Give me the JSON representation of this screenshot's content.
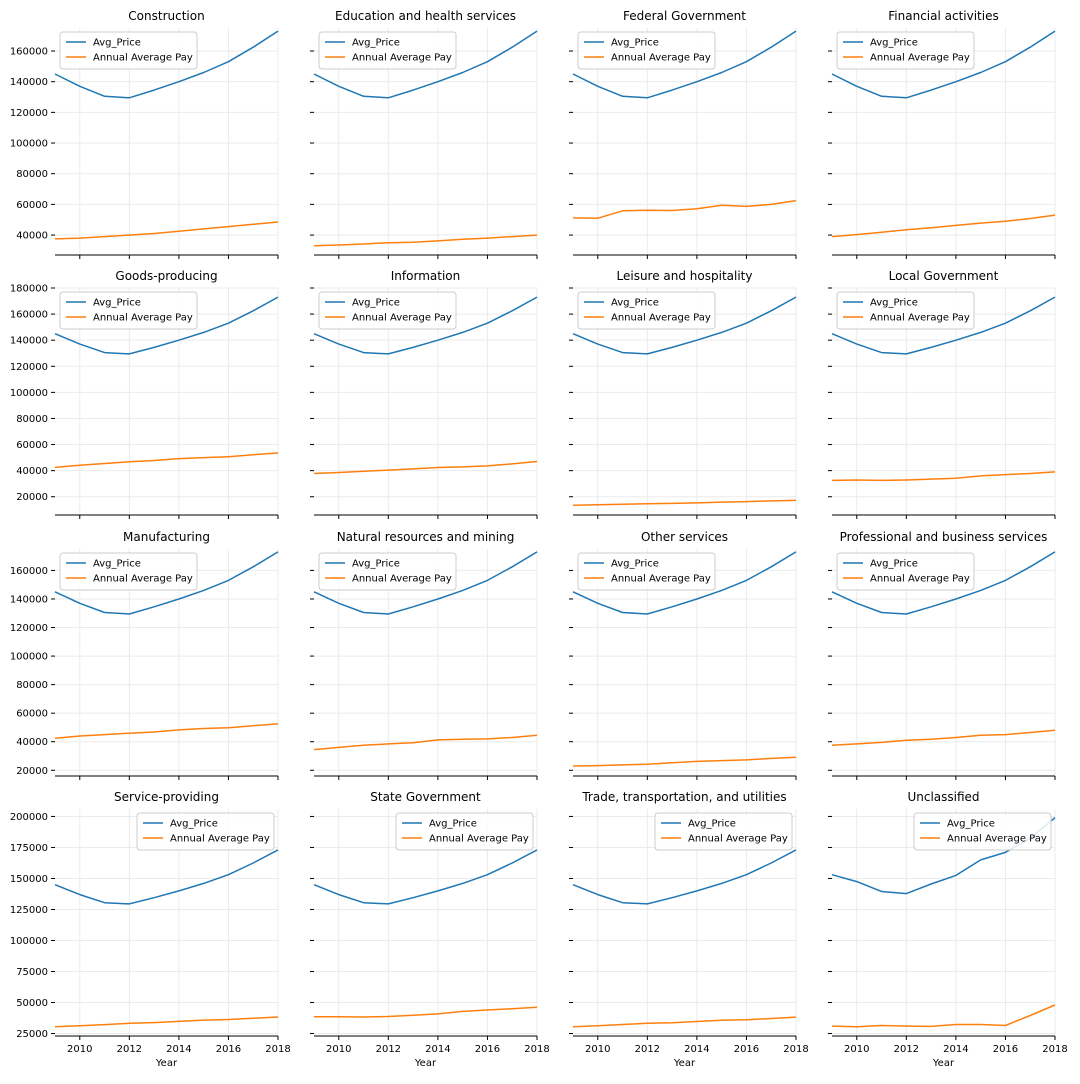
{
  "figure": {
    "xlabel": "Year",
    "legend_labels": [
      "Avg_Price",
      "Annual Average Pay"
    ],
    "series_colors": {
      "Avg_Price": "#1f77b4",
      "Annual Average Pay": "#ff7f0e"
    },
    "x_ticks": [
      2010,
      2012,
      2014,
      2016,
      2018
    ],
    "x_range": [
      2009,
      2018
    ],
    "row_y": [
      {
        "range": [
          27000,
          175000
        ],
        "ticks": [
          40000,
          60000,
          80000,
          100000,
          120000,
          140000,
          160000
        ]
      },
      {
        "range": [
          6000,
          180000
        ],
        "ticks": [
          20000,
          40000,
          60000,
          80000,
          100000,
          120000,
          140000,
          160000,
          180000
        ]
      },
      {
        "range": [
          16000,
          175000
        ],
        "ticks": [
          20000,
          40000,
          60000,
          80000,
          100000,
          120000,
          140000,
          160000
        ]
      },
      {
        "range": [
          23000,
          206000
        ],
        "ticks": [
          25000,
          50000,
          75000,
          100000,
          125000,
          150000,
          175000,
          200000
        ]
      }
    ]
  },
  "chart_data": [
    {
      "type": "line",
      "title": "Construction",
      "legend_position": "upper-left",
      "x": [
        2009,
        2010,
        2011,
        2012,
        2013,
        2014,
        2015,
        2016,
        2017,
        2018
      ],
      "series": [
        {
          "name": "Avg_Price",
          "values": [
            145000,
            137000,
            130500,
            129500,
            134500,
            140000,
            146000,
            153000,
            162500,
            173000
          ]
        },
        {
          "name": "Annual Average Pay",
          "values": [
            37500,
            38000,
            39000,
            40000,
            41000,
            42500,
            44000,
            45500,
            47000,
            48500
          ]
        }
      ]
    },
    {
      "type": "line",
      "title": "Education and health services",
      "legend_position": "upper-left",
      "x": [
        2009,
        2010,
        2011,
        2012,
        2013,
        2014,
        2015,
        2016,
        2017,
        2018
      ],
      "series": [
        {
          "name": "Avg_Price",
          "values": [
            145000,
            137000,
            130500,
            129500,
            134500,
            140000,
            146000,
            153000,
            162500,
            173000
          ]
        },
        {
          "name": "Annual Average Pay",
          "values": [
            33000,
            33500,
            34200,
            35000,
            35300,
            36200,
            37300,
            38000,
            39000,
            40000
          ]
        }
      ]
    },
    {
      "type": "line",
      "title": "Federal Government",
      "legend_position": "upper-left",
      "x": [
        2009,
        2010,
        2011,
        2012,
        2013,
        2014,
        2015,
        2016,
        2017,
        2018
      ],
      "series": [
        {
          "name": "Avg_Price",
          "values": [
            145000,
            137000,
            130500,
            129500,
            134500,
            140000,
            146000,
            153000,
            162500,
            173000
          ]
        },
        {
          "name": "Annual Average Pay",
          "values": [
            51200,
            51000,
            55800,
            56200,
            56000,
            57200,
            59500,
            58700,
            60000,
            62500
          ]
        }
      ]
    },
    {
      "type": "line",
      "title": "Financial activities",
      "legend_position": "upper-left",
      "x": [
        2009,
        2010,
        2011,
        2012,
        2013,
        2014,
        2015,
        2016,
        2017,
        2018
      ],
      "series": [
        {
          "name": "Avg_Price",
          "values": [
            145000,
            137000,
            130500,
            129500,
            134500,
            140000,
            146000,
            153000,
            162500,
            173000
          ]
        },
        {
          "name": "Annual Average Pay",
          "values": [
            39000,
            40300,
            41800,
            43500,
            44800,
            46300,
            47800,
            49000,
            50800,
            53000
          ]
        }
      ]
    },
    {
      "type": "line",
      "title": "Goods-producing",
      "legend_position": "upper-left",
      "x": [
        2009,
        2010,
        2011,
        2012,
        2013,
        2014,
        2015,
        2016,
        2017,
        2018
      ],
      "series": [
        {
          "name": "Avg_Price",
          "values": [
            145000,
            137000,
            130500,
            129500,
            134500,
            140000,
            146000,
            153000,
            162500,
            173000
          ]
        },
        {
          "name": "Annual Average Pay",
          "values": [
            42500,
            44200,
            45500,
            46800,
            47800,
            49200,
            50000,
            50600,
            52200,
            53500
          ]
        }
      ]
    },
    {
      "type": "line",
      "title": "Information",
      "legend_position": "upper-left",
      "x": [
        2009,
        2010,
        2011,
        2012,
        2013,
        2014,
        2015,
        2016,
        2017,
        2018
      ],
      "series": [
        {
          "name": "Avg_Price",
          "values": [
            145000,
            137000,
            130500,
            129500,
            134500,
            140000,
            146000,
            153000,
            162500,
            173000
          ]
        },
        {
          "name": "Annual Average Pay",
          "values": [
            37800,
            38600,
            39500,
            40400,
            41300,
            42400,
            42900,
            43600,
            45200,
            47000
          ]
        }
      ]
    },
    {
      "type": "line",
      "title": "Leisure and hospitality",
      "legend_position": "upper-left",
      "x": [
        2009,
        2010,
        2011,
        2012,
        2013,
        2014,
        2015,
        2016,
        2017,
        2018
      ],
      "series": [
        {
          "name": "Avg_Price",
          "values": [
            145000,
            137000,
            130500,
            129500,
            134500,
            140000,
            146000,
            153000,
            162500,
            173000
          ]
        },
        {
          "name": "Annual Average Pay",
          "values": [
            13500,
            13900,
            14300,
            14600,
            14900,
            15300,
            15900,
            16300,
            16800,
            17200
          ]
        }
      ]
    },
    {
      "type": "line",
      "title": "Local Government",
      "legend_position": "upper-left",
      "x": [
        2009,
        2010,
        2011,
        2012,
        2013,
        2014,
        2015,
        2016,
        2017,
        2018
      ],
      "series": [
        {
          "name": "Avg_Price",
          "values": [
            145000,
            137000,
            130500,
            129500,
            134500,
            140000,
            146000,
            153000,
            162500,
            173000
          ]
        },
        {
          "name": "Annual Average Pay",
          "values": [
            32500,
            32800,
            32500,
            32800,
            33500,
            34200,
            36000,
            37000,
            37800,
            39000
          ]
        }
      ]
    },
    {
      "type": "line",
      "title": "Manufacturing",
      "legend_position": "upper-left",
      "x": [
        2009,
        2010,
        2011,
        2012,
        2013,
        2014,
        2015,
        2016,
        2017,
        2018
      ],
      "series": [
        {
          "name": "Avg_Price",
          "values": [
            145000,
            137000,
            130500,
            129500,
            134500,
            140000,
            146000,
            153000,
            162500,
            173000
          ]
        },
        {
          "name": "Annual Average Pay",
          "values": [
            42500,
            44000,
            45000,
            46000,
            46800,
            48300,
            49300,
            49800,
            51200,
            52500
          ]
        }
      ]
    },
    {
      "type": "line",
      "title": "Natural resources and mining",
      "legend_position": "upper-left",
      "x": [
        2009,
        2010,
        2011,
        2012,
        2013,
        2014,
        2015,
        2016,
        2017,
        2018
      ],
      "series": [
        {
          "name": "Avg_Price",
          "values": [
            145000,
            137000,
            130500,
            129500,
            134500,
            140000,
            146000,
            153000,
            162500,
            173000
          ]
        },
        {
          "name": "Annual Average Pay",
          "values": [
            34500,
            36000,
            37500,
            38500,
            39300,
            41300,
            41800,
            42000,
            43000,
            44500
          ]
        }
      ]
    },
    {
      "type": "line",
      "title": "Other services",
      "legend_position": "upper-left",
      "x": [
        2009,
        2010,
        2011,
        2012,
        2013,
        2014,
        2015,
        2016,
        2017,
        2018
      ],
      "series": [
        {
          "name": "Avg_Price",
          "values": [
            145000,
            137000,
            130500,
            129500,
            134500,
            140000,
            146000,
            153000,
            162500,
            173000
          ]
        },
        {
          "name": "Annual Average Pay",
          "values": [
            23000,
            23300,
            23800,
            24300,
            25300,
            26200,
            26800,
            27300,
            28300,
            29200
          ]
        }
      ]
    },
    {
      "type": "line",
      "title": "Professional and business services",
      "legend_position": "upper-left",
      "x": [
        2009,
        2010,
        2011,
        2012,
        2013,
        2014,
        2015,
        2016,
        2017,
        2018
      ],
      "series": [
        {
          "name": "Avg_Price",
          "values": [
            145000,
            137000,
            130500,
            129500,
            134500,
            140000,
            146000,
            153000,
            162500,
            173000
          ]
        },
        {
          "name": "Annual Average Pay",
          "values": [
            37500,
            38500,
            39500,
            41000,
            41800,
            43000,
            44500,
            45000,
            46500,
            48000
          ]
        }
      ]
    },
    {
      "type": "line",
      "title": "Service-providing",
      "legend_position": "upper-right",
      "x": [
        2009,
        2010,
        2011,
        2012,
        2013,
        2014,
        2015,
        2016,
        2017,
        2018
      ],
      "series": [
        {
          "name": "Avg_Price",
          "values": [
            145000,
            137000,
            130500,
            129500,
            134500,
            140000,
            146000,
            153000,
            162500,
            173000
          ]
        },
        {
          "name": "Annual Average Pay",
          "values": [
            30500,
            31300,
            32200,
            33200,
            33800,
            34800,
            35800,
            36300,
            37300,
            38300
          ]
        }
      ]
    },
    {
      "type": "line",
      "title": "State Government",
      "legend_position": "upper-right",
      "x": [
        2009,
        2010,
        2011,
        2012,
        2013,
        2014,
        2015,
        2016,
        2017,
        2018
      ],
      "series": [
        {
          "name": "Avg_Price",
          "values": [
            145000,
            137000,
            130500,
            129500,
            134500,
            140000,
            146000,
            153000,
            162500,
            173000
          ]
        },
        {
          "name": "Annual Average Pay",
          "values": [
            38500,
            38500,
            38300,
            38700,
            39700,
            40800,
            42800,
            44000,
            45000,
            46200
          ]
        }
      ]
    },
    {
      "type": "line",
      "title": "Trade, transportation, and utilities",
      "legend_position": "upper-right",
      "x": [
        2009,
        2010,
        2011,
        2012,
        2013,
        2014,
        2015,
        2016,
        2017,
        2018
      ],
      "series": [
        {
          "name": "Avg_Price",
          "values": [
            145000,
            137000,
            130500,
            129500,
            134500,
            140000,
            146000,
            153000,
            162500,
            173000
          ]
        },
        {
          "name": "Annual Average Pay",
          "values": [
            30500,
            31300,
            32300,
            33200,
            33700,
            34700,
            35700,
            36100,
            37100,
            38200
          ]
        }
      ]
    },
    {
      "type": "line",
      "title": "Unclassified",
      "legend_position": "upper-right",
      "x": [
        2009,
        2010,
        2011,
        2012,
        2013,
        2014,
        2015,
        2016,
        2017,
        2018
      ],
      "series": [
        {
          "name": "Avg_Price",
          "values": [
            153000,
            147500,
            139500,
            137800,
            145500,
            152500,
            165000,
            171000,
            182500,
            199000
          ]
        },
        {
          "name": "Annual Average Pay",
          "values": [
            31000,
            30500,
            31500,
            31000,
            30700,
            32300,
            32300,
            31500,
            39500,
            48000
          ]
        }
      ]
    }
  ]
}
